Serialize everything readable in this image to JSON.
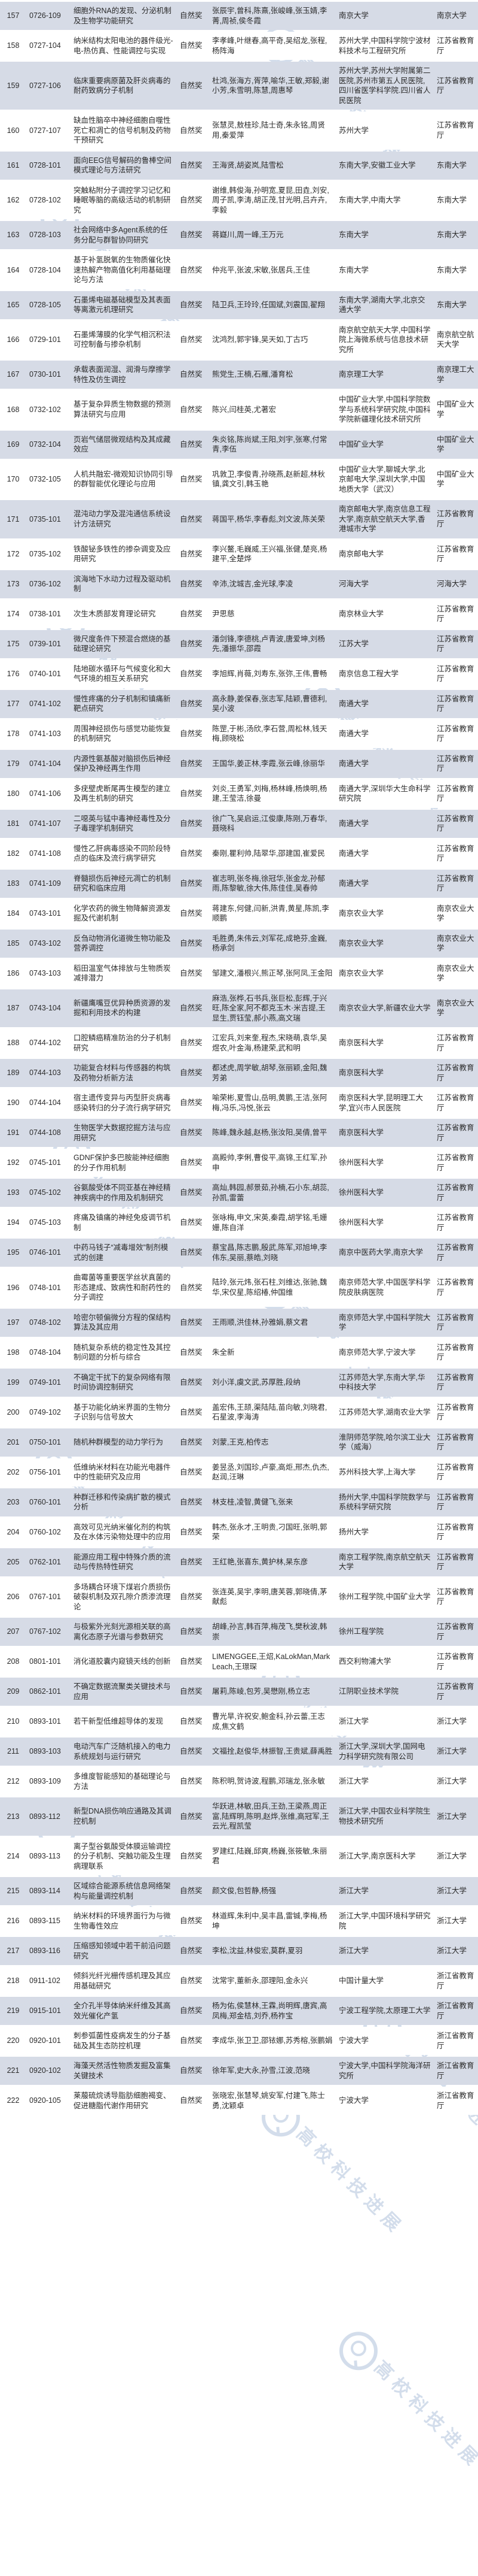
{
  "colors": {
    "row_alt": "#d6dbe6",
    "row_base": "#ffffff",
    "text": "#2b2b2b",
    "watermark": "#9fb6d4"
  },
  "watermark": {
    "text": "高校科技进展",
    "logo": "magnifier-icon"
  },
  "table": {
    "rows": [
      {
        "no": "157",
        "code": "0726-109",
        "title": "细胞外RNA的发现、分泌机制及生物学功能研究",
        "award": "自然奖",
        "contributors": "张辰宇,曾科,陈熹,张峻峰,张玉婧,李菁,周祯,侯冬霞",
        "institution": "南京大学",
        "recommender": "南京大学"
      },
      {
        "no": "158",
        "code": "0727-104",
        "title": "纳米结构太阳电池的器件级光-电-热仿真、性能调控与实现",
        "award": "自然奖",
        "contributors": "李孝峰,叶继春,高平奇,吴绍龙,张程,杨阵海",
        "institution": "苏州大学,中国科学院宁波材料技术与工程研究所",
        "recommender": "江苏省教育厅"
      },
      {
        "no": "159",
        "code": "0727-106",
        "title": "临床重要病原菌及肝炎病毒的耐药致病分子机制",
        "award": "自然奖",
        "contributors": "杜鸿,张海方,胥萍,喻华,王敏,郑毅,谢小芳,朱雪明,陈慧,周惠琴",
        "institution": "苏州大学,苏州大学附属第二医院,苏州市第五人民医院,四川省医学科学院.四川省人民医院",
        "recommender": "江苏省教育厅"
      },
      {
        "no": "160",
        "code": "0727-107",
        "title": "缺血性脑卒中神经细胞自噬性死亡和凋亡的信号机制及药物干预研究",
        "award": "自然奖",
        "contributors": "张慧灵,敖桂珍,陆士奇,朱永铭,周贤用,秦爱萍",
        "institution": "苏州大学",
        "recommender": "江苏省教育厅"
      },
      {
        "no": "161",
        "code": "0728-101",
        "title": "面向EEG信号解码的鲁棒空间模式理论与方法研究",
        "award": "自然奖",
        "contributors": "王海贤,胡姿岚,陆雪松",
        "institution": "东南大学,安徽工业大学",
        "recommender": "东南大学"
      },
      {
        "no": "162",
        "code": "0728-102",
        "title": "突触粘附分子调控学习记忆和睡眠等脑的高级活动的机制研究",
        "award": "自然奖",
        "contributors": "谢维,韩俊海,孙明宽,夏昆,田垚,刘安,周子凯,李涛,胡正茂,甘光明,吕卉卉,李毅",
        "institution": "东南大学,中南大学",
        "recommender": "东南大学"
      },
      {
        "no": "163",
        "code": "0728-103",
        "title": "社会网络中多Agent系统的任务分配与群智协同研究",
        "award": "自然奖",
        "contributors": "蒋嶷川,周一峰,王万元",
        "institution": "东南大学",
        "recommender": "东南大学"
      },
      {
        "no": "164",
        "code": "0728-104",
        "title": "基于补氢脱氧的生物质催化快速热解产物高值化利用基础理论与方法",
        "award": "自然奖",
        "contributors": "仲兆平,张波,宋敏,张居兵,王佳",
        "institution": "东南大学",
        "recommender": "东南大学"
      },
      {
        "no": "165",
        "code": "0728-105",
        "title": "石墨烯电磁基础模型及其表面等离激元机理研究",
        "award": "自然奖",
        "contributors": "陆卫兵,王玲玲,任国斌,刘震国,翟翔",
        "institution": "东南大学,湖南大学,北京交通大学",
        "recommender": "东南大学"
      },
      {
        "no": "166",
        "code": "0729-101",
        "title": "石墨烯薄膜的化学气相沉积法可控制备与掺杂机制",
        "award": "自然奖",
        "contributors": "沈鸿烈,郭宇锋,吴天如,丁古巧",
        "institution": "南京航空航天大学,中国科学院上海微系统与信息技术研究所",
        "recommender": "南京航空航天大学"
      },
      {
        "no": "167",
        "code": "0730-101",
        "title": "承载表面润湿、润滑与摩擦学特性及仿生调控",
        "award": "自然奖",
        "contributors": "熊党生,王楠,石雁,潘育松",
        "institution": "南京理工大学",
        "recommender": "南京理工大学"
      },
      {
        "no": "168",
        "code": "0732-102",
        "title": "基于复杂异质生物数据的预测算法研究与应用",
        "award": "自然奖",
        "contributors": "陈兴,闫桂英,尤著宏",
        "institution": "中国矿业大学,中国科学院数学与系统科学研究院,中国科学院新疆理化技术研究所",
        "recommender": "中国矿业大学"
      },
      {
        "no": "169",
        "code": "0732-104",
        "title": "页岩气储层微观结构及其成藏效应",
        "award": "自然奖",
        "contributors": "朱炎铭,陈尚斌,王阳,刘宇,张寒,付常青,李伍",
        "institution": "中国矿业大学",
        "recommender": "中国矿业大学"
      },
      {
        "no": "170",
        "code": "0732-105",
        "title": "人机共融宏-微观知识协同引导的群智能优化理论与应用",
        "award": "自然奖",
        "contributors": "巩敦卫,李俊青,孙晓燕,赵新超,林秋镇,龚文引,韩玉艳",
        "institution": "中国矿业大学,聊城大学,北京邮电大学,深圳大学,中国地质大学（武汉）",
        "recommender": "中国矿业大学"
      },
      {
        "no": "171",
        "code": "0735-101",
        "title": "混沌动力学及混沌通信系统设计方法研究",
        "award": "自然奖",
        "contributors": "蒋国平,杨华,李春彪,刘文波,陈关荣",
        "institution": "南京邮电大学,南京信息工程大学,南京航空航天大学,香港城市大学",
        "recommender": "江苏省教育厅"
      },
      {
        "no": "172",
        "code": "0735-102",
        "title": "铁酸铋多铁性的掺杂调变及应用研究",
        "award": "自然奖",
        "contributors": "李兴鳌,毛巍威,王兴福,张健,楚亮,杨建平,全楚烨",
        "institution": "南京邮电大学",
        "recommender": "江苏省教育厅"
      },
      {
        "no": "173",
        "code": "0736-102",
        "title": "滨海地下水动力过程及驱动机制",
        "award": "自然奖",
        "contributors": "辛沛,沈城吉,金光球,李凌",
        "institution": "河海大学",
        "recommender": "河海大学"
      },
      {
        "no": "174",
        "code": "0738-101",
        "title": "次生木质部发育理论研究",
        "award": "自然奖",
        "contributors": "尹思慈",
        "institution": "南京林业大学",
        "recommender": "江苏省教育厅"
      },
      {
        "no": "175",
        "code": "0739-101",
        "title": "微尺度条件下预混合燃烧的基础理论研究",
        "award": "自然奖",
        "contributors": "潘剑锋,李德桃,卢青波,唐爱坤,刘杨先,潘振华,邵霞",
        "institution": "江苏大学",
        "recommender": "江苏省教育厅"
      },
      {
        "no": "176",
        "code": "0740-101",
        "title": "陆地碳水循环与气候变化和大气环境的相互关系研究",
        "award": "自然奖",
        "contributors": "李旭辉,肖薇,刘寿东,张弥,王伟,曹畅",
        "institution": "南京信息工程大学",
        "recommender": "江苏省教育厅"
      },
      {
        "no": "177",
        "code": "0741-102",
        "title": "慢性疼痛的分子机制和镇痛新靶点研究",
        "award": "自然奖",
        "contributors": "高永静,姜保春,张志军,陆颖,曹德利,吴小波",
        "institution": "南通大学",
        "recommender": "江苏省教育厅"
      },
      {
        "no": "178",
        "code": "0741-103",
        "title": "周围神经损伤与感觉功能恢复的机制研究",
        "award": "自然奖",
        "contributors": "陈罡,于彬,汤欣,李石营,周松林,钱天梅,顾晓松",
        "institution": "南通大学",
        "recommender": "江苏省教育厅"
      },
      {
        "no": "179",
        "code": "0741-104",
        "title": "内源性氨基酸对脑损伤后神经保护及神经再生作用",
        "award": "自然奖",
        "contributors": "王国华,姜正林,李霞,张云峰,徐丽华",
        "institution": "南通大学",
        "recommender": "江苏省教育厅"
      },
      {
        "no": "180",
        "code": "0741-106",
        "title": "多疣壁虎断尾再生模型的建立及再生机制的研究",
        "award": "自然奖",
        "contributors": "刘炎,王勇军,刘梅,杨林峰,杨焕明,杨建,王莹洁,徐曼",
        "institution": "南通大学,深圳华大生命科学研究院",
        "recommender": "江苏省教育厅"
      },
      {
        "no": "181",
        "code": "0741-107",
        "title": "二噁英与锰中毒神经毒性及分子毒理学机制研究",
        "award": "自然奖",
        "contributors": "徐广飞,吴启运,江俊康,陈刚,万春华,聂晓科",
        "institution": "南通大学",
        "recommender": "江苏省教育厅"
      },
      {
        "no": "182",
        "code": "0741-108",
        "title": "慢性乙肝病毒感染不同阶段特点的临床及流行病学研究",
        "award": "自然奖",
        "contributors": "秦刚,瞿利帅,陆翠华,邵建国,崔爱民",
        "institution": "南通大学",
        "recommender": "江苏省教育厅"
      },
      {
        "no": "183",
        "code": "0741-109",
        "title": "脊髓损伤后神经元凋亡的机制研究和临床应用",
        "award": "自然奖",
        "contributors": "崔志明,张冬梅,徐冠华,张金龙,孙郁雨,陈黎敏,徐大伟,陈佳佳,吴春帅",
        "institution": "南通大学",
        "recommender": "江苏省教育厅"
      },
      {
        "no": "184",
        "code": "0743-101",
        "title": "化学农药的微生物降解资源发掘及代谢机制",
        "award": "自然奖",
        "contributors": "蒋建东,何健,闫新,洪青,黄星,陈凯,李顺鹏",
        "institution": "南京农业大学",
        "recommender": "南京农业大学"
      },
      {
        "no": "185",
        "code": "0743-102",
        "title": "反刍动物消化道微生物功能及营养调控",
        "award": "自然奖",
        "contributors": "毛胜勇,朱伟云,刘军花,成艳芬,金巍,杨承剑",
        "institution": "南京农业大学",
        "recommender": "南京农业大学"
      },
      {
        "no": "186",
        "code": "0743-103",
        "title": "稻田温室气体排放与生物质炭减排潜力",
        "award": "自然奖",
        "contributors": "邹建文,潘根兴,熊正琴,张阿凤,王金阳",
        "institution": "南京农业大学",
        "recommender": "南京农业大学"
      },
      {
        "no": "187",
        "code": "0743-104",
        "title": "新疆鹰嘴豆优异种质资源的发掘和利用技术的构建",
        "award": "自然奖",
        "contributors": "麻浩,张桦,石书兵,张巨松,彭辉,于兴旺,陈全家,阿不都克玉木·米吉提,王显生,贾钰莹,郝小燕,高文瑞",
        "institution": "南京农业大学,新疆农业大学",
        "recommender": "南京农业大学"
      },
      {
        "no": "188",
        "code": "0744-102",
        "title": "口腔鳞癌精准防治的分子机制研究",
        "award": "自然奖",
        "contributors": "江宏兵,刘来奎,程杰,宋晓萌,袁华,吴煜农,叶金海,杨建荣,武和明",
        "institution": "南京医科大学",
        "recommender": "江苏省教育厅"
      },
      {
        "no": "189",
        "code": "0744-103",
        "title": "功能复合材料与传感器的构筑及药物分析新方法",
        "award": "自然奖",
        "contributors": "都述虎,周学敏,胡琴,张丽颖,金阳,魏芳弟",
        "institution": "南京医科大学",
        "recommender": "江苏省教育厅"
      },
      {
        "no": "190",
        "code": "0744-104",
        "title": "宿主遗传变异与丙型肝炎病毒感染转归的分子流行病学研究",
        "award": "自然奖",
        "contributors": "喻荣彬,夏雪山,岳明,黄鹏,王洁,张阿梅,冯乐,冯悦,张云",
        "institution": "南京医科大学,昆明理工大学,宜兴市人民医院",
        "recommender": "江苏省教育厅"
      },
      {
        "no": "191",
        "code": "0744-108",
        "title": "生物医学大数据挖掘方法与应用研究",
        "award": "自然奖",
        "contributors": "陈峰,魏永越,赵杨,张汝阳,吴倩,曾平",
        "institution": "南京医科大学",
        "recommender": "江苏省教育厅"
      },
      {
        "no": "192",
        "code": "0745-101",
        "title": "GDNF保护多巴胺能神经细胞的分子作用机制",
        "award": "自然奖",
        "contributors": "高殿帅,李俐,曹俊平,高锦,王红军,孙申",
        "institution": "徐州医科大学",
        "recommender": "江苏省教育厅"
      },
      {
        "no": "193",
        "code": "0745-102",
        "title": "谷氨酸受体不同亚基在神经精神疾病中的作用及机制研究",
        "award": "自然奖",
        "contributors": "高灿,韩园,郝景茹,孙楠,石小东,胡蕊,孙凯,雷蕾",
        "institution": "徐州医科大学",
        "recommender": "江苏省教育厅"
      },
      {
        "no": "194",
        "code": "0745-103",
        "title": "疼痛及镇痛的神经免疫调节机制",
        "award": "自然奖",
        "contributors": "张咏梅,申文,宋英,秦霞,胡学铭,毛姗姗,陈自洋",
        "institution": "徐州医科大学",
        "recommender": "江苏省教育厅"
      },
      {
        "no": "195",
        "code": "0746-101",
        "title": "中药马钱子“减毒增效”制剂模式的创建",
        "award": "自然奖",
        "contributors": "蔡宝昌,陈志鹏,殷武,陈军,邓旭坤,李伟东,吴丽,蔡皓,刘晓",
        "institution": "南京中医药大学,南京大学",
        "recommender": "江苏省教育厅"
      },
      {
        "no": "196",
        "code": "0748-101",
        "title": "曲霉菌等重要医学丝状真菌的形态建成、致病性和耐药性的分子调控",
        "award": "自然奖",
        "contributors": "陆玲,张元炜,张石柱,刘维达,张驰,魏华,宋仅星,陈绍椿,仲国维",
        "institution": "南京师范大学,中国医学科学院皮肤病医院",
        "recommender": "江苏省教育厅"
      },
      {
        "no": "197",
        "code": "0748-102",
        "title": "哈密尔顿偏微分方程的保结构算法及其应用",
        "award": "自然奖",
        "contributors": "王雨顺,洪佳林,孙雅娟,蔡文君",
        "institution": "南京师范大学,中国科学院大学",
        "recommender": "江苏省教育厅"
      },
      {
        "no": "198",
        "code": "0748-104",
        "title": "随机复杂系统的稳定性及其控制问题的分析与综合",
        "award": "自然奖",
        "contributors": "朱全新",
        "institution": "南京师范大学,宁波大学",
        "recommender": "江苏省教育厅"
      },
      {
        "no": "199",
        "code": "0749-101",
        "title": "不确定干扰下的复杂网络有限时间协调控制研究",
        "award": "自然奖",
        "contributors": "刘小洋,虞文武,苏厚胜,段纳",
        "institution": "江苏师范大学,东南大学,华中科技大学",
        "recommender": "江苏省教育厅"
      },
      {
        "no": "200",
        "code": "0749-102",
        "title": "基于功能化纳米界面的生物分子识别与信号放大",
        "award": "自然奖",
        "contributors": "盖宏伟,王颉,渠陆陆,苗向敏,刘晓君,石星波,李海涛",
        "institution": "江苏师范大学,湖南农业大学",
        "recommender": "江苏省教育厅"
      },
      {
        "no": "201",
        "code": "0750-101",
        "title": "随机种群模型的动力学行为",
        "award": "自然奖",
        "contributors": "刘蒙,王克,柏传志",
        "institution": "淮阴师范学院,哈尔滨工业大学（威海）",
        "recommender": "江苏省教育厅"
      },
      {
        "no": "202",
        "code": "0756-101",
        "title": "低维纳米材料在功能光电器件中的性能研究及应用",
        "award": "自然奖",
        "contributors": "姜昱丞,刘国珍,卢豪,高炬,邢杰,仇杰,赵润,汪琳",
        "institution": "苏州科技大学,上海大学",
        "recommender": "江苏省教育厅"
      },
      {
        "no": "203",
        "code": "0760-101",
        "title": "种群迁移和传染病扩散的模式分析",
        "award": "自然奖",
        "contributors": "林支桂,凌智,黄健飞,张来",
        "institution": "扬州大学,中国科学院数学与系统科学研究院",
        "recommender": "江苏省教育厅"
      },
      {
        "no": "204",
        "code": "0760-102",
        "title": "高效可见光纳米催化剂的构筑及在水体污染物处理中的应用",
        "award": "自然奖",
        "contributors": "韩杰,张永才,王明贵,刁国旺,张明,郭荣",
        "institution": "扬州大学",
        "recommender": "江苏省教育厅"
      },
      {
        "no": "205",
        "code": "0762-101",
        "title": "能源应用工程中特殊介质的流动与传热特性研究",
        "award": "自然奖",
        "contributors": "王红艳,张喜东,黄护林,杲东彦",
        "institution": "南京工程学院,南京航空航天大学",
        "recommender": "江苏省教育厅"
      },
      {
        "no": "206",
        "code": "0767-101",
        "title": "多场耦合环境下煤岩介质损伤破裂机制及双孔隙介质渗流理论",
        "award": "自然奖",
        "contributors": "张连英,吴宇,李明,唐芙蓉,郭晓倩,茅献彪",
        "institution": "徐州工程学院,中国矿业大学",
        "recommender": "江苏省教育厅"
      },
      {
        "no": "207",
        "code": "0767-102",
        "title": "与极紫外光刻光源相关联的高离化态原子光谱与参数研究",
        "award": "自然奖",
        "contributors": "胡峰,孙言,韩百萍,梅茂飞,樊秋波,韩崇",
        "institution": "徐州工程学院",
        "recommender": "江苏省教育厅"
      },
      {
        "no": "208",
        "code": "0801-101",
        "title": "消化道胶囊内窥镜天线的创新",
        "award": "自然奖",
        "contributors": "LIMENGGEE,王炤,KaLokMan,MarkLeach,王璟琛",
        "institution": "西交利物浦大学",
        "recommender": "江苏省教育厅"
      },
      {
        "no": "209",
        "code": "0862-101",
        "title": "不确定数据流聚类关键技术与应用",
        "award": "自然奖",
        "contributors": "屠莉,陈崚,包芳,吴懋刚,杨立志",
        "institution": "江阴职业技术学院",
        "recommender": "江苏省教育厅"
      },
      {
        "no": "210",
        "code": "0893-101",
        "title": "若干新型低维超导体的发现",
        "award": "自然奖",
        "contributors": "曹光旱,许祝安,鲍金科,孙云蕾,王志成,焦文鹤",
        "institution": "浙江大学",
        "recommender": "浙江大学"
      },
      {
        "no": "211",
        "code": "0893-103",
        "title": "电动汽车广泛随机接入的电力系统规划与运行研究",
        "award": "自然奖",
        "contributors": "文福拴,赵俊华,林振智,王贵斌,薛禹胜",
        "institution": "浙江大学,深圳大学,国网电力科学研究院有限公司",
        "recommender": "浙江大学"
      },
      {
        "no": "212",
        "code": "0893-109",
        "title": "多维度智能感知的基础理论与方法",
        "award": "自然奖",
        "contributors": "陈积明,贺诗波,程鹏,邓瑞龙,张永敏",
        "institution": "浙江大学",
        "recommender": "浙江大学"
      },
      {
        "no": "213",
        "code": "0893-112",
        "title": "新型DNA损伤响应通路及其调控机制",
        "award": "自然奖",
        "contributors": "华跃进,林敏,田兵,王劲,王梁燕,周正富,陆辉明,陈明,赵烨,张维,高冠军,王云光,程凯莹",
        "institution": "浙江大学,中国农业科学院生物技术研究所",
        "recommender": "浙江大学"
      },
      {
        "no": "214",
        "code": "0893-113",
        "title": "离子型谷氨酸受体膜运输调控的分子机制、突触功能及生理病理联系",
        "award": "自然奖",
        "contributors": "罗建红,陆巍,邱爽,杨巍,张筱敏,朱丽君",
        "institution": "浙江大学,南京医科大学",
        "recommender": "浙江大学"
      },
      {
        "no": "215",
        "code": "0893-114",
        "title": "区域综合能源系统信息网络架构与能量调控机制",
        "award": "自然奖",
        "contributors": "颜文俊,包哲静,杨强",
        "institution": "浙江大学",
        "recommender": "浙江大学"
      },
      {
        "no": "216",
        "code": "0893-115",
        "title": "纳米材料的环境界面行为与微生物毒性效应",
        "award": "自然奖",
        "contributors": "林道辉,朱利中,吴丰昌,雷铖,李梅,杨坤",
        "institution": "浙江大学,中国环境科学研究院",
        "recommender": "浙江大学"
      },
      {
        "no": "217",
        "code": "0893-116",
        "title": "压缩感知领域中若干前沿问题研究",
        "award": "自然奖",
        "contributors": "李松,沈益,林俊宏,莫群,夏羽",
        "institution": "浙江大学",
        "recommender": "浙江大学"
      },
      {
        "no": "218",
        "code": "0911-102",
        "title": "倾斜光纤光栅传感机理及其应用基础研究",
        "award": "自然奖",
        "contributors": "沈常宇,董新永,邵理阳,金永兴",
        "institution": "中国计量大学",
        "recommender": "浙江省教育厅"
      },
      {
        "no": "219",
        "code": "0915-101",
        "title": "全介孔半导体纳米纤维及其高效光催化产氢",
        "award": "自然奖",
        "contributors": "杨为佑,侯慧林,王霖,尚明辉,唐宾,高凤梅,郑金桔,刘乔,杨祚宝",
        "institution": "宁波工程学院,太原理工大学",
        "recommender": "浙江省教育厅"
      },
      {
        "no": "220",
        "code": "0920-101",
        "title": "刺参弧菌性疫病发生的分子基础及其生态防控机理",
        "award": "自然奖",
        "contributors": "李成华,张卫卫,邵铱娜,苏秀榕,张鹏娟",
        "institution": "宁波大学",
        "recommender": "浙江省教育厅"
      },
      {
        "no": "221",
        "code": "0920-102",
        "title": "海藻天然活性物质发掘及富集关键技术",
        "award": "自然奖",
        "contributors": "徐年军,史大永,孙雪,江波,范晓",
        "institution": "宁波大学,中国科学院海洋研究所",
        "recommender": "浙江省教育厅"
      },
      {
        "no": "222",
        "code": "0920-105",
        "title": "莱菔硫烷诱导脂肪细胞褐变、促进糖脂代谢作用研究",
        "award": "自然奖",
        "contributors": "张晓宏,张慧琴,姚安军,付建飞,陈士勇,沈颖卓",
        "institution": "宁波大学",
        "recommender": "浙江省教育厅"
      }
    ]
  }
}
